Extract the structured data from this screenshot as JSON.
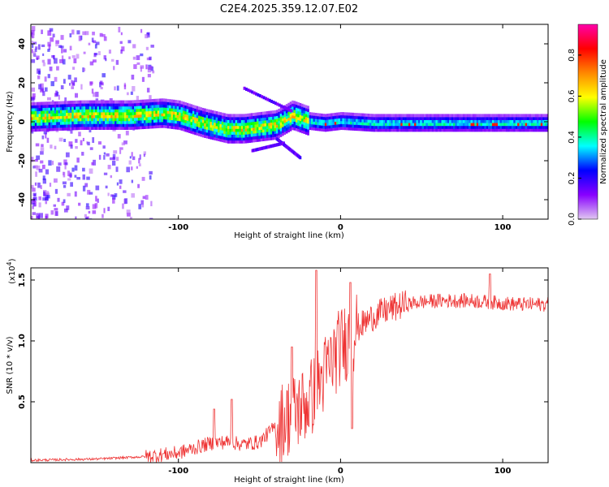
{
  "title": "C2E4.2025.359.12.07.E02",
  "chart_data": [
    {
      "type": "heatmap",
      "title": "C2E4.2025.359.12.07.E02",
      "xlabel": "Height of straight line (km)",
      "ylabel": "Frequency (Hz)",
      "xlim": [
        -191,
        128
      ],
      "ylim": [
        -50,
        50
      ],
      "xticks": [
        -100,
        0,
        100
      ],
      "yticks": [
        40,
        20,
        0,
        -20,
        -40
      ],
      "colorbar": {
        "label": "Normalized spectral amplitude",
        "range": [
          0,
          0.95
        ],
        "ticks": [
          0.0,
          0.2,
          0.4,
          0.6,
          0.8
        ],
        "colormap": [
          "#e0c8f0",
          "#8800ff",
          "#0000ff",
          "#00ffff",
          "#00ff00",
          "#ffff00",
          "#ff8800",
          "#ff0000",
          "#ff00aa"
        ]
      },
      "ridge": {
        "x": [
          -191,
          -160,
          -130,
          -110,
          -100,
          -85,
          -70,
          -60,
          -50,
          -40,
          -30,
          -20,
          -10,
          0,
          20,
          60,
          100,
          128
        ],
        "y": [
          3,
          4,
          4,
          5,
          4,
          0,
          -3,
          -3,
          -2,
          -1,
          4,
          1,
          0,
          1,
          0,
          0,
          0,
          0
        ]
      }
    },
    {
      "type": "line",
      "title": "",
      "xlabel": "Height of straight line (km)",
      "ylabel": "SNR (10 * v/v)",
      "y_multiplier_label": "(x10",
      "y_multiplier_exponent": "4",
      "y_multiplier_close": ")",
      "xlim": [
        -191,
        128
      ],
      "ylim": [
        0,
        1.6
      ],
      "xticks": [
        -100,
        0,
        100
      ],
      "yticks": [
        0.5,
        1.0,
        1.5
      ],
      "ytick_labels": [
        "0.5",
        "1.0",
        "1.5"
      ],
      "color": "#ee3333",
      "trend": {
        "x": [
          -191,
          -150,
          -120,
          -100,
          -90,
          -80,
          -70,
          -60,
          -50,
          -40,
          -30,
          -20,
          -15,
          -10,
          -5,
          0,
          5,
          10,
          20,
          30,
          40,
          50,
          60,
          70,
          80,
          90,
          100,
          110,
          128
        ],
        "y": [
          0.02,
          0.03,
          0.05,
          0.08,
          0.12,
          0.16,
          0.17,
          0.15,
          0.17,
          0.3,
          0.4,
          0.5,
          0.6,
          0.72,
          0.85,
          0.95,
          1.02,
          1.1,
          1.2,
          1.26,
          1.3,
          1.32,
          1.33,
          1.33,
          1.33,
          1.32,
          1.31,
          1.3,
          1.3
        ]
      },
      "peaks": [
        {
          "x": -78,
          "y": 0.44
        },
        {
          "x": -67,
          "y": 0.52
        },
        {
          "x": -30,
          "y": 0.95
        },
        {
          "x": -15,
          "y": 1.58
        },
        {
          "x": 6,
          "y": 1.48
        },
        {
          "x": 7,
          "y": 0.28
        },
        {
          "x": 92,
          "y": 1.55
        }
      ]
    }
  ]
}
